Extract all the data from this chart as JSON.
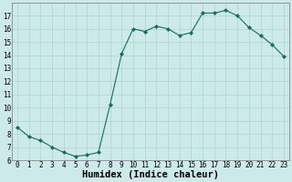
{
  "x": [
    0,
    1,
    2,
    3,
    4,
    5,
    6,
    7,
    8,
    9,
    10,
    11,
    12,
    13,
    14,
    15,
    16,
    17,
    18,
    19,
    20,
    21,
    22,
    23
  ],
  "y": [
    8.5,
    7.8,
    7.5,
    7.0,
    6.6,
    6.3,
    6.4,
    6.6,
    10.2,
    14.1,
    16.0,
    15.8,
    16.2,
    16.0,
    15.5,
    15.7,
    17.2,
    17.2,
    17.4,
    17.0,
    16.1,
    15.5,
    14.8,
    13.9
  ],
  "xlabel": "Humidex (Indice chaleur)",
  "ylim": [
    6,
    18
  ],
  "xlim": [
    -0.5,
    23.5
  ],
  "yticks": [
    6,
    7,
    8,
    9,
    10,
    11,
    12,
    13,
    14,
    15,
    16,
    17
  ],
  "xticks": [
    0,
    1,
    2,
    3,
    4,
    5,
    6,
    7,
    8,
    9,
    10,
    11,
    12,
    13,
    14,
    15,
    16,
    17,
    18,
    19,
    20,
    21,
    22,
    23
  ],
  "line_color": "#1a6b5a",
  "marker": "D",
  "marker_size": 2.0,
  "bg_color": "#cceae8",
  "grid_color": "#b0d4d0",
  "font_size_xlabel": 7.5,
  "font_size_tick": 5.5,
  "linewidth": 0.8
}
